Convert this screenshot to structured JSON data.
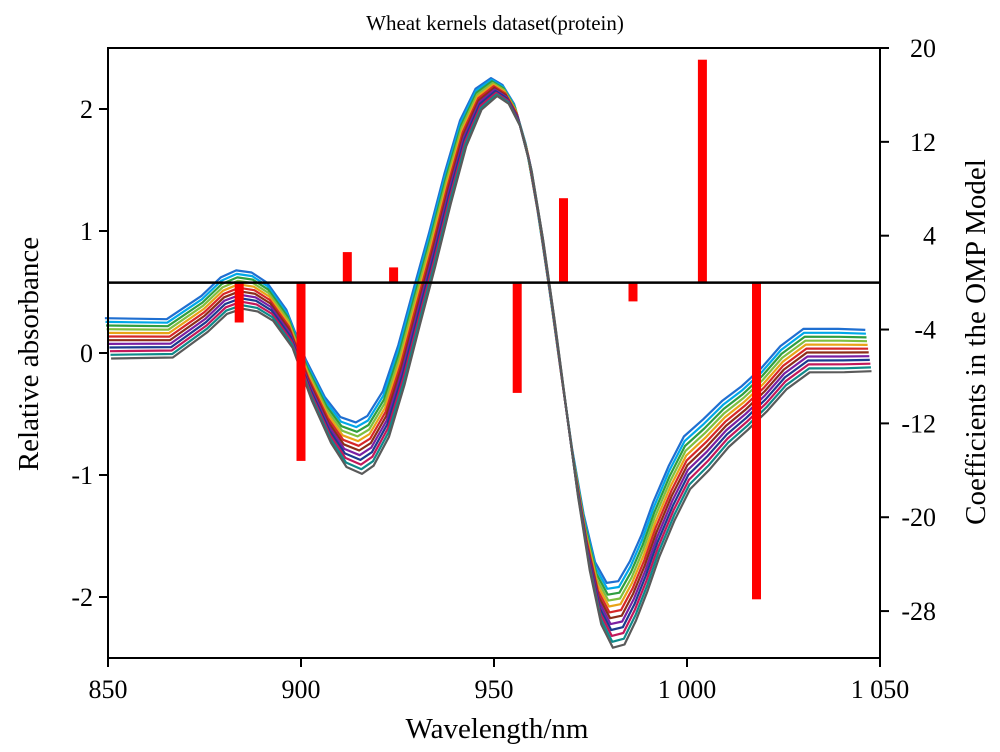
{
  "chart_data": {
    "type": "line",
    "title": "Wheat kernels dataset(protein)",
    "xlabel": "Wavelength/nm",
    "ylabel_left": "Relative absorbance",
    "ylabel_right": "Coefficients in the OMP Model",
    "xlim": [
      850,
      1050
    ],
    "ylim_left": [
      -2.5,
      2.5
    ],
    "ylim_right": [
      -32,
      20
    ],
    "x_ticks": [
      850,
      900,
      950,
      1000,
      1050
    ],
    "x_tick_labels": [
      "850",
      "900",
      "950",
      "1 000",
      "1 050"
    ],
    "y_left_ticks": [
      2,
      1,
      0,
      -1,
      -2
    ],
    "y_left_tick_labels": [
      "2",
      "1",
      "0",
      "-1",
      "-2"
    ],
    "y_right_ticks": [
      20,
      12,
      4,
      -4,
      -12,
      -20,
      -28
    ],
    "y_right_tick_labels": [
      "20",
      "12",
      "4",
      "-4",
      "-12",
      "-20",
      "-28"
    ],
    "spectrum_x": [
      850,
      866,
      875,
      880,
      884,
      888,
      892,
      897,
      902,
      907,
      911,
      915,
      918,
      922,
      926,
      930,
      934,
      938,
      942,
      946,
      950,
      953,
      956,
      959,
      962,
      965,
      968,
      971,
      974,
      977,
      980,
      983,
      986,
      989,
      992,
      996,
      1000,
      1005,
      1010,
      1015,
      1020,
      1025,
      1031,
      1040,
      1047
    ],
    "spectrum_y_mean": [
      0.12,
      0.12,
      0.32,
      0.47,
      0.52,
      0.5,
      0.42,
      0.2,
      -0.22,
      -0.55,
      -0.73,
      -0.78,
      -0.72,
      -0.5,
      -0.1,
      0.38,
      0.85,
      1.35,
      1.8,
      2.08,
      2.18,
      2.12,
      1.95,
      1.6,
      1.05,
      0.4,
      -0.3,
      -0.98,
      -1.55,
      -1.97,
      -2.15,
      -2.13,
      -1.95,
      -1.72,
      -1.45,
      -1.15,
      -0.9,
      -0.75,
      -0.58,
      -0.45,
      -0.3,
      -0.12,
      0.02,
      0.02,
      0.02
    ],
    "spectrum_count": 12,
    "series_colors": [
      "#1f6fd1",
      "#00a8e8",
      "#2f9e3f",
      "#7fbf3f",
      "#e8a317",
      "#d62728",
      "#8c2d19",
      "#7a1fa2",
      "#1a3c8f",
      "#c2185b",
      "#0f8a8a",
      "#5a5a5a"
    ],
    "omp_coefficients": [
      {
        "x": 884,
        "value": -3.4
      },
      {
        "x": 900,
        "value": -15.2
      },
      {
        "x": 912,
        "value": 2.6
      },
      {
        "x": 924,
        "value": 1.3
      },
      {
        "x": 956,
        "value": -9.4
      },
      {
        "x": 968,
        "value": 7.2
      },
      {
        "x": 986,
        "value": -1.6
      },
      {
        "x": 1004,
        "value": 19.0
      },
      {
        "x": 1018,
        "value": -27.0
      }
    ],
    "bar_color": "#ff0000",
    "zero_line_color": "#000000"
  }
}
